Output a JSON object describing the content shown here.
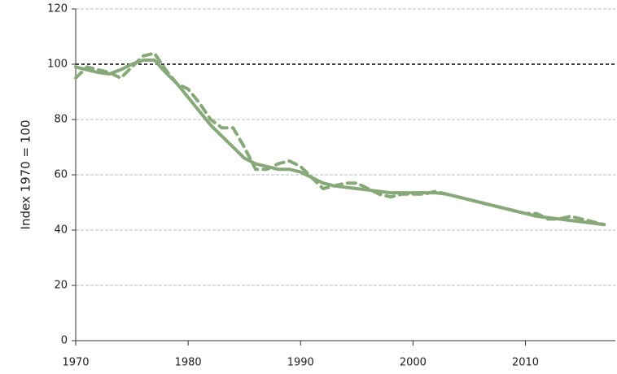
{
  "chart_data": {
    "type": "line",
    "y_label": "Index 1970 = 100",
    "x": [
      1970,
      1971,
      1972,
      1973,
      1974,
      1975,
      1976,
      1977,
      1978,
      1979,
      1980,
      1981,
      1982,
      1983,
      1984,
      1985,
      1986,
      1987,
      1988,
      1989,
      1990,
      1991,
      1992,
      1993,
      1994,
      1995,
      1996,
      1997,
      1998,
      1999,
      2000,
      2001,
      2002,
      2003,
      2004,
      2005,
      2006,
      2007,
      2008,
      2009,
      2010,
      2011,
      2012,
      2013,
      2014,
      2015,
      2016,
      2017
    ],
    "series": [
      {
        "color": "#87a878",
        "dashed": true,
        "values": [
          95,
          99,
          98,
          97,
          95,
          99,
          103,
          104,
          98,
          93,
          91,
          86,
          80,
          77,
          77,
          70,
          62,
          62,
          64,
          65,
          63,
          59,
          55,
          56,
          57,
          57,
          55,
          53,
          52,
          53,
          53,
          53,
          54,
          53,
          52,
          51,
          50,
          49,
          48,
          47,
          46,
          46,
          44,
          44,
          45,
          44,
          43,
          42
        ]
      },
      {
        "color": "#87a878",
        "dashed": false,
        "values": [
          99,
          98,
          97,
          96.5,
          98,
          100,
          101.5,
          101.5,
          97,
          93,
          88,
          83,
          78,
          74,
          70,
          66,
          64,
          63,
          62,
          62,
          61,
          59,
          57,
          56,
          55.5,
          55,
          54.5,
          54,
          53.5,
          53.5,
          53.5,
          53.5,
          53.5,
          53,
          52,
          51,
          50,
          49,
          48,
          47,
          46,
          45,
          44.5,
          44,
          43.5,
          43,
          42.5,
          42
        ]
      }
    ],
    "xlim": [
      1970,
      2018
    ],
    "xticks": [
      1970,
      1980,
      1990,
      2000,
      2010
    ],
    "ylim": [
      0,
      120
    ],
    "yticks": [
      0,
      20,
      40,
      60,
      80,
      100,
      120
    ],
    "grid": true,
    "reference_line": 100
  }
}
